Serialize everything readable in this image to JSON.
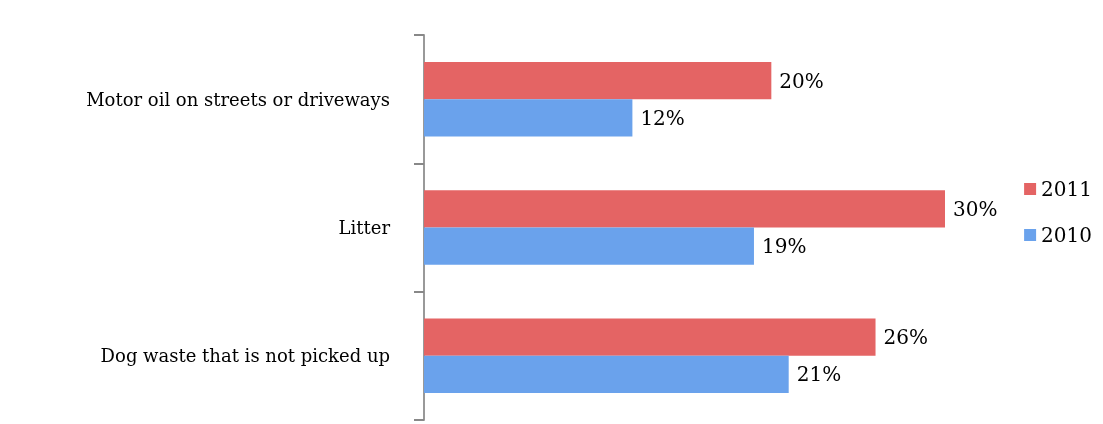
{
  "chart_data": {
    "type": "bar",
    "orientation": "horizontal",
    "categories": [
      "Motor oil on streets or driveways",
      "Litter",
      "Dog waste that is not picked up"
    ],
    "series": [
      {
        "name": "2011",
        "color": "#e46464",
        "values": [
          20,
          30,
          26
        ],
        "value_labels": [
          "20%",
          "30%",
          "26%"
        ]
      },
      {
        "name": "2010",
        "color": "#6aa2ec",
        "values": [
          12,
          19,
          21
        ],
        "value_labels": [
          "12%",
          "19%",
          "21%"
        ]
      }
    ],
    "legend": "right",
    "grid": false
  }
}
